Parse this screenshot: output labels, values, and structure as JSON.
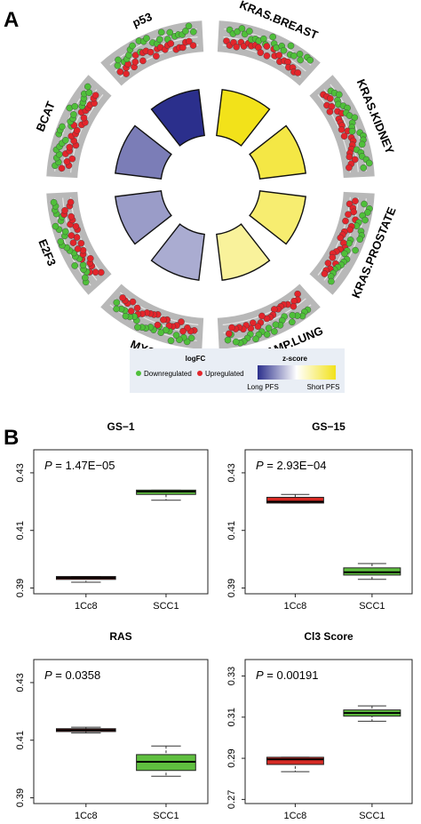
{
  "panel_a_label": "A",
  "panel_b_label": "B",
  "colors": {
    "track_gray": "#b8b8b8",
    "down": "#4fbf3a",
    "up": "#e3252b",
    "long_pfs": "#2b2f8c",
    "short_pfs": "#f2e21a",
    "box_green": "#5fbf3f",
    "box_red": "#d62a24"
  },
  "legend": {
    "logfc_title": "logFC",
    "down_label": "Downregulated",
    "up_label": "Upregulated",
    "zscore_title": "z-score",
    "long_label": "Long PFS",
    "short_label": "Short PFS"
  },
  "chart_data": [
    {
      "type": "circos",
      "panel": "A",
      "segments": [
        {
          "name": "KRAS.BREAST",
          "zscore": 2.0
        },
        {
          "name": "KRAS.KIDNEY",
          "zscore": 1.5
        },
        {
          "name": "KRAS.PROSTATE",
          "zscore": 1.0
        },
        {
          "name": "KRAS.AMP.LUNG",
          "zscore": 0.5
        },
        {
          "name": "MYC",
          "zscore": -0.4
        },
        {
          "name": "E2F3",
          "zscore": -0.6
        },
        {
          "name": "BCAT",
          "zscore": -1.0
        },
        {
          "name": "p53",
          "zscore": -2.0
        }
      ],
      "zscore_range": [
        -2,
        2
      ]
    },
    {
      "type": "box",
      "panel": "B",
      "title": "GS−1",
      "pvalue_prefix": "P",
      "pvalue": "= 1.47E−05",
      "categories": [
        "1Cc8",
        "SCC1"
      ],
      "ylim": [
        0.388,
        0.438
      ],
      "yticks": [
        "0.39",
        "0.41",
        "0.43"
      ],
      "ytick_values": [
        0.39,
        0.41,
        0.43
      ],
      "boxes": [
        {
          "min": 0.392,
          "q1": 0.393,
          "median": 0.3935,
          "q3": 0.394,
          "max": 0.394,
          "color": "red"
        },
        {
          "min": 0.4205,
          "q1": 0.4225,
          "median": 0.4235,
          "q3": 0.424,
          "max": 0.424,
          "color": "green"
        }
      ]
    },
    {
      "type": "box",
      "panel": "B",
      "title": "GS−15",
      "pvalue_prefix": "P",
      "pvalue": "= 2.93E−04",
      "categories": [
        "1Cc8",
        "SCC1"
      ],
      "ylim": [
        0.388,
        0.438
      ],
      "yticks": [
        "0.39",
        "0.41",
        "0.43"
      ],
      "ytick_values": [
        0.39,
        0.41,
        0.43
      ],
      "boxes": [
        {
          "min": 0.4195,
          "q1": 0.4195,
          "median": 0.42,
          "q3": 0.4215,
          "max": 0.4225,
          "color": "red"
        },
        {
          "min": 0.393,
          "q1": 0.3945,
          "median": 0.3955,
          "q3": 0.397,
          "max": 0.3985,
          "color": "green"
        }
      ]
    },
    {
      "type": "box",
      "panel": "B",
      "title": "RAS",
      "pvalue_prefix": "P",
      "pvalue": "= 0.0358",
      "categories": [
        "1Cc8",
        "SCC1"
      ],
      "ylim": [
        0.388,
        0.438
      ],
      "yticks": [
        "0.39",
        "0.41",
        "0.43"
      ],
      "ytick_values": [
        0.39,
        0.41,
        0.43
      ],
      "boxes": [
        {
          "min": 0.4125,
          "q1": 0.413,
          "median": 0.4135,
          "q3": 0.414,
          "max": 0.4145,
          "color": "red"
        },
        {
          "min": 0.3975,
          "q1": 0.3995,
          "median": 0.4025,
          "q3": 0.405,
          "max": 0.408,
          "color": "green"
        }
      ]
    },
    {
      "type": "box",
      "panel": "B",
      "title": "Cl3 Score",
      "pvalue_prefix": "P",
      "pvalue": "= 0.00191",
      "categories": [
        "1Cc8",
        "SCC1"
      ],
      "ylim": [
        0.268,
        0.338
      ],
      "yticks": [
        "0.27",
        "0.29",
        "0.31",
        "0.33"
      ],
      "ytick_values": [
        0.27,
        0.29,
        0.31,
        0.33
      ],
      "boxes": [
        {
          "min": 0.2835,
          "q1": 0.287,
          "median": 0.2895,
          "q3": 0.2905,
          "max": 0.2905,
          "color": "red"
        },
        {
          "min": 0.308,
          "q1": 0.3105,
          "median": 0.312,
          "q3": 0.3135,
          "max": 0.3155,
          "color": "green"
        }
      ]
    }
  ]
}
